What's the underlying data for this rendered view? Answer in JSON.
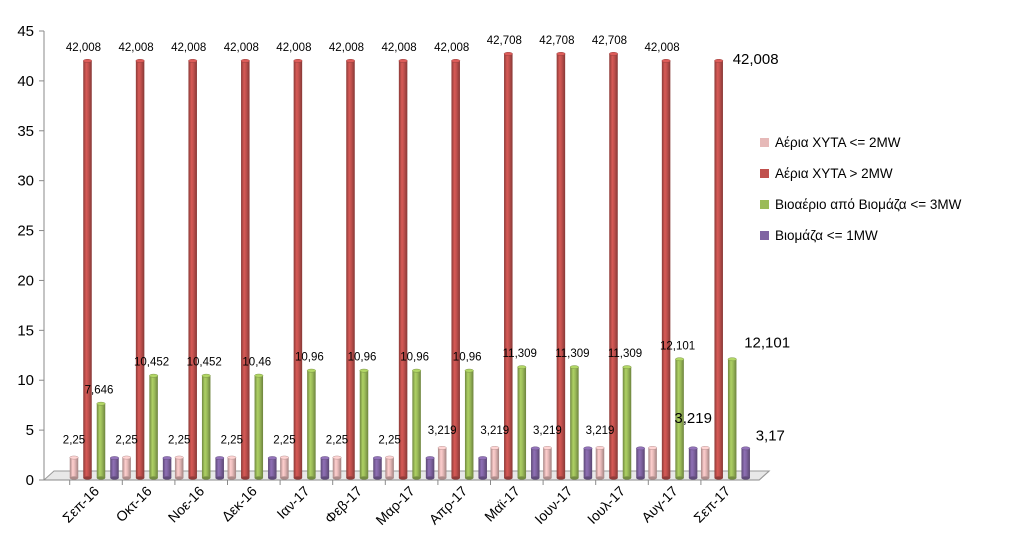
{
  "chart_data": {
    "type": "bar",
    "categories": [
      "Σεπ-16",
      "Οκτ-16",
      "Νοε-16",
      "Δεκ-16",
      "Ιαν-17",
      "Φεβ-17",
      "Μαρ-17",
      "Απρ-17",
      "Μαϊ-17",
      "Ιουν-17",
      "Ιουλ-17",
      "Αυγ-17",
      "Σεπ-17"
    ],
    "series": [
      {
        "name": "Αέρια ΧΥΤΑ <= 2MW",
        "color": "#e6b9b8",
        "values": [
          2.25,
          2.25,
          2.25,
          2.25,
          2.25,
          2.25,
          2.25,
          3.219,
          3.219,
          3.219,
          3.219,
          3.219,
          3.219
        ],
        "labels": [
          "2,25",
          "2,25",
          "2,25",
          "2,25",
          "2,25",
          "2,25",
          "2,25",
          "3,219",
          "3,219",
          "3,219",
          "3,219",
          "",
          "3,219"
        ]
      },
      {
        "name": "Αέρια ΧΥΤΑ > 2MW",
        "color": "#c0504d",
        "values": [
          42.008,
          42.008,
          42.008,
          42.008,
          42.008,
          42.008,
          42.008,
          42.008,
          42.708,
          42.708,
          42.708,
          42.008,
          42.008
        ],
        "labels": [
          "42,008",
          "42,008",
          "42,008",
          "42,008",
          "42,008",
          "42,008",
          "42,008",
          "42,008",
          "42,708",
          "42,708",
          "42,708",
          "42,008",
          "42,008"
        ]
      },
      {
        "name": "Βιοαέριο από Βιομάζα <= 3MW",
        "color": "#9bbb59",
        "values": [
          7.646,
          10.452,
          10.452,
          10.46,
          10.96,
          10.96,
          10.96,
          10.96,
          11.309,
          11.309,
          11.309,
          12.101,
          12.101
        ],
        "labels": [
          "7,646",
          "10,452",
          "10,452",
          "10,46",
          "10,96",
          "10,96",
          "10,96",
          "10,96",
          "11,309",
          "11,309",
          "11,309",
          "12,101",
          "12,101"
        ]
      },
      {
        "name": "Βιομάζα <= 1MW",
        "color": "#8064a2",
        "values": [
          2.2,
          2.2,
          2.2,
          2.2,
          2.2,
          2.2,
          2.2,
          2.2,
          3.17,
          3.17,
          3.17,
          3.17,
          3.17
        ],
        "labels": [
          "",
          "",
          "",
          "",
          "",
          "",
          "",
          "",
          "",
          "",
          "",
          "",
          "3,17"
        ]
      }
    ],
    "ylim": [
      0,
      45
    ],
    "yticks": [
      "0",
      "5",
      "10",
      "15",
      "20",
      "25",
      "30",
      "35",
      "40",
      "45"
    ],
    "grid": false,
    "legend_position": "right",
    "title": "",
    "xlabel": "",
    "ylabel": ""
  }
}
